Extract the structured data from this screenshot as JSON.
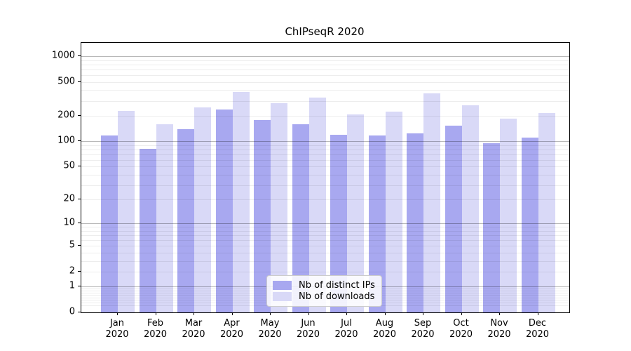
{
  "title": "ChIPseqR 2020",
  "chart_data": {
    "type": "bar",
    "title": "ChIPseqR 2020",
    "yscale": "log1p",
    "ylim": [
      0,
      1400
    ],
    "grid": "horizontal major+minor gridlines drawn over bars",
    "legend_position": "lower center inside plot",
    "categories": [
      "Jan 2020",
      "Feb 2020",
      "Mar 2020",
      "Apr 2020",
      "May 2020",
      "Jun 2020",
      "Jul 2020",
      "Aug 2020",
      "Sep 2020",
      "Oct 2020",
      "Nov 2020",
      "Dec 2020"
    ],
    "series": [
      {
        "name": "Nb of distinct IPs",
        "color": "#a8a8f0",
        "values": [
          117,
          81,
          139,
          237,
          178,
          160,
          119,
          117,
          124,
          153,
          95,
          110
        ]
      },
      {
        "name": "Nb of downloads",
        "color": "#d9d9f7",
        "values": [
          228,
          159,
          250,
          380,
          281,
          325,
          207,
          225,
          365,
          264,
          185,
          215
        ]
      }
    ],
    "y_ticks": [
      1000,
      500,
      200,
      100,
      50,
      20,
      10,
      5,
      2,
      1,
      0
    ]
  }
}
